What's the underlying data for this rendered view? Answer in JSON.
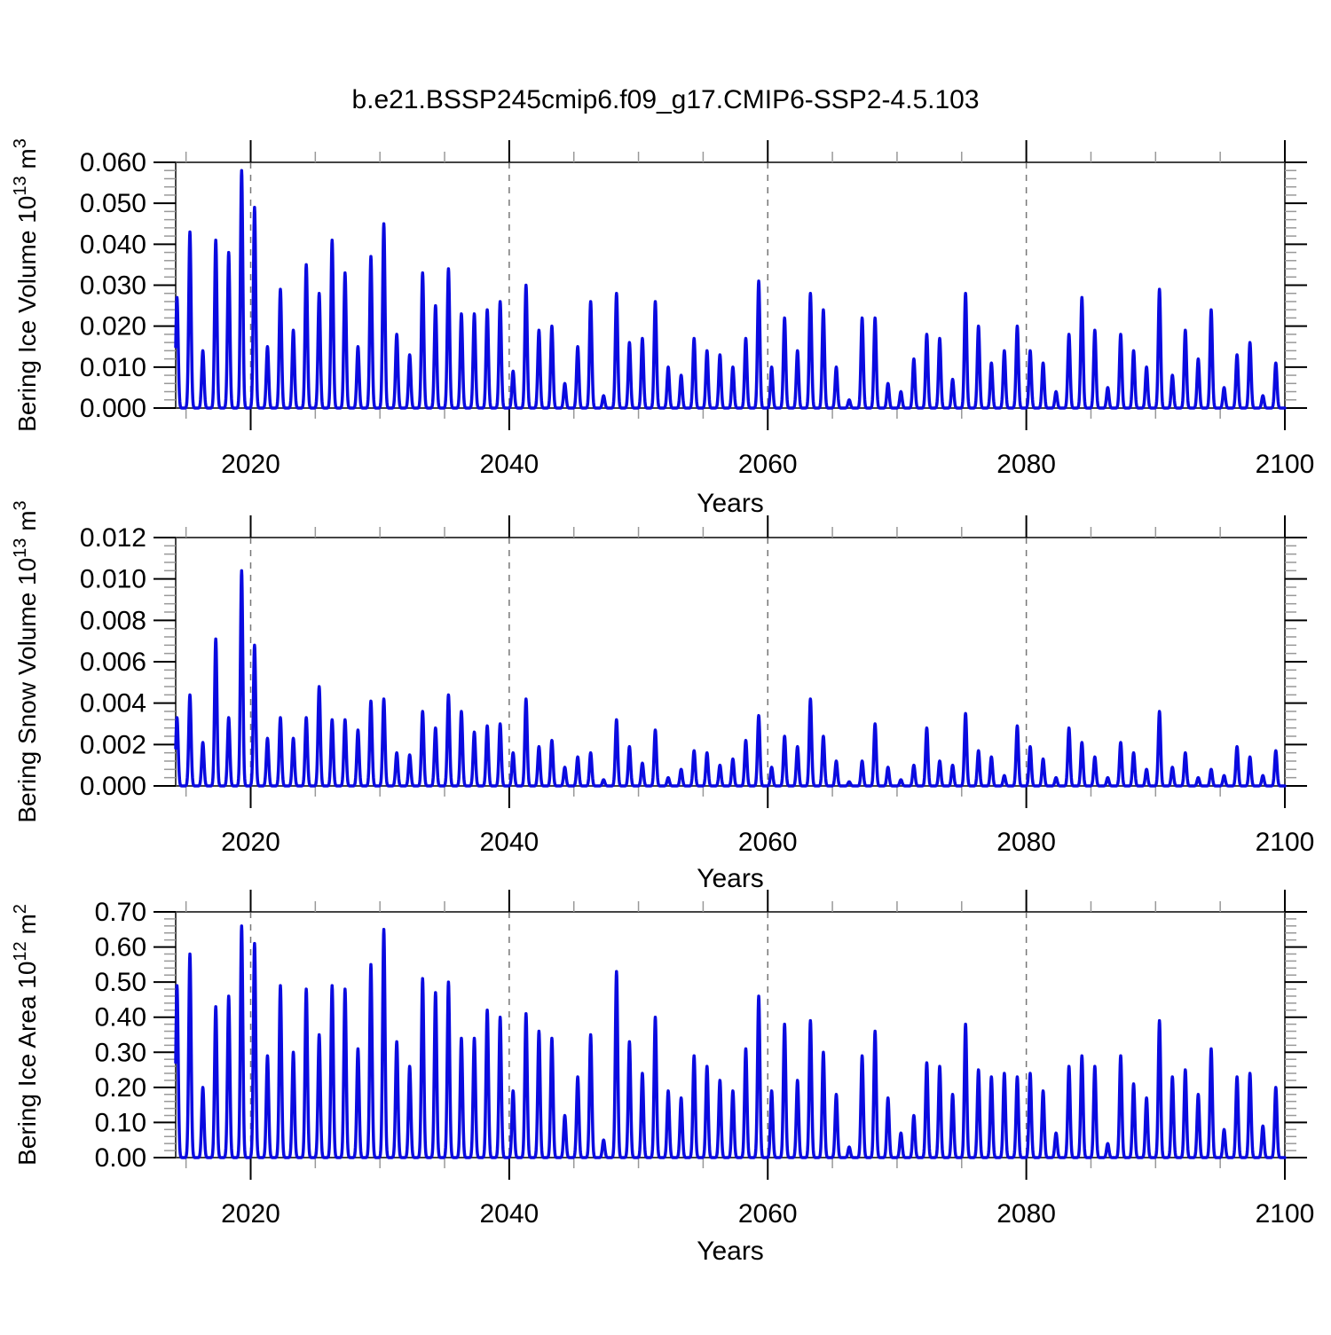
{
  "figure": {
    "title": "b.e21.BSSP245cmip6.f09_g17.CMIP6-SSP2-4.5.103",
    "background_color": "#ffffff",
    "line_color": "#0a0ae0",
    "gridline_color": "#777777",
    "gridline_style": "dashed-vertical"
  },
  "chart_data": [
    {
      "type": "line",
      "series_name": "Bering Ice Volume",
      "ylabel": "Bering Ice Volume 10^13 m^3",
      "ylabel_parts": [
        {
          "t": "Bering Ice Volume 10"
        },
        {
          "t": "13",
          "sup": true
        },
        {
          "t": " m"
        },
        {
          "t": "3",
          "sup": true
        }
      ],
      "xlabel": "Years",
      "ylim": [
        0,
        0.06
      ],
      "ytick_labels": [
        "0.000",
        "0.010",
        "0.020",
        "0.030",
        "0.040",
        "0.050",
        "0.060"
      ],
      "ytick_values": [
        0,
        0.01,
        0.02,
        0.03,
        0.04,
        0.05,
        0.06
      ],
      "y_minor_step": 0.002,
      "xlim": [
        2014.2,
        2100
      ],
      "xtick_values": [
        2020,
        2040,
        2060,
        2080,
        2100
      ],
      "x_minor_step": 5,
      "gridlines_x": [
        2020,
        2040,
        2060,
        2080
      ],
      "baseline_value": 0,
      "years": [
        2014,
        2015,
        2016,
        2017,
        2018,
        2019,
        2020,
        2021,
        2022,
        2023,
        2024,
        2025,
        2026,
        2027,
        2028,
        2029,
        2030,
        2031,
        2032,
        2033,
        2034,
        2035,
        2036,
        2037,
        2038,
        2039,
        2040,
        2041,
        2042,
        2043,
        2044,
        2045,
        2046,
        2047,
        2048,
        2049,
        2050,
        2051,
        2052,
        2053,
        2054,
        2055,
        2056,
        2057,
        2058,
        2059,
        2060,
        2061,
        2062,
        2063,
        2064,
        2065,
        2066,
        2067,
        2068,
        2069,
        2070,
        2071,
        2072,
        2073,
        2074,
        2075,
        2076,
        2077,
        2078,
        2079,
        2080,
        2081,
        2082,
        2083,
        2084,
        2085,
        2086,
        2087,
        2088,
        2089,
        2090,
        2091,
        2092,
        2093,
        2094,
        2095,
        2096,
        2097,
        2098,
        2099
      ],
      "annual_peak_values": [
        0.027,
        0.043,
        0.014,
        0.041,
        0.038,
        0.058,
        0.049,
        0.015,
        0.029,
        0.019,
        0.035,
        0.028,
        0.041,
        0.033,
        0.015,
        0.037,
        0.045,
        0.018,
        0.013,
        0.033,
        0.025,
        0.034,
        0.023,
        0.023,
        0.024,
        0.026,
        0.009,
        0.03,
        0.019,
        0.02,
        0.006,
        0.015,
        0.026,
        0.003,
        0.028,
        0.016,
        0.017,
        0.026,
        0.01,
        0.008,
        0.017,
        0.014,
        0.013,
        0.01,
        0.017,
        0.031,
        0.01,
        0.022,
        0.014,
        0.028,
        0.024,
        0.01,
        0.002,
        0.022,
        0.022,
        0.006,
        0.004,
        0.012,
        0.018,
        0.017,
        0.007,
        0.028,
        0.02,
        0.011,
        0.014,
        0.02,
        0.014,
        0.011,
        0.004,
        0.018,
        0.027,
        0.019,
        0.005,
        0.018,
        0.014,
        0.01,
        0.029,
        0.008,
        0.019,
        0.012,
        0.024,
        0.005,
        0.013,
        0.016,
        0.003,
        0.011
      ]
    },
    {
      "type": "line",
      "series_name": "Bering Snow Volume",
      "ylabel": "Bering Snow Volume 10^13 m^3",
      "ylabel_parts": [
        {
          "t": "Bering Snow Volume 10"
        },
        {
          "t": "13",
          "sup": true
        },
        {
          "t": " m"
        },
        {
          "t": "3",
          "sup": true
        }
      ],
      "xlabel": "Years",
      "ylim": [
        0,
        0.012
      ],
      "ytick_labels": [
        "0.000",
        "0.002",
        "0.004",
        "0.006",
        "0.008",
        "0.010",
        "0.012"
      ],
      "ytick_values": [
        0,
        0.002,
        0.004,
        0.006,
        0.008,
        0.01,
        0.012
      ],
      "y_minor_step": 0.0004,
      "xlim": [
        2014.2,
        2100
      ],
      "xtick_values": [
        2020,
        2040,
        2060,
        2080,
        2100
      ],
      "x_minor_step": 5,
      "gridlines_x": [
        2020,
        2040,
        2060,
        2080
      ],
      "baseline_value": 0,
      "years": [
        2014,
        2015,
        2016,
        2017,
        2018,
        2019,
        2020,
        2021,
        2022,
        2023,
        2024,
        2025,
        2026,
        2027,
        2028,
        2029,
        2030,
        2031,
        2032,
        2033,
        2034,
        2035,
        2036,
        2037,
        2038,
        2039,
        2040,
        2041,
        2042,
        2043,
        2044,
        2045,
        2046,
        2047,
        2048,
        2049,
        2050,
        2051,
        2052,
        2053,
        2054,
        2055,
        2056,
        2057,
        2058,
        2059,
        2060,
        2061,
        2062,
        2063,
        2064,
        2065,
        2066,
        2067,
        2068,
        2069,
        2070,
        2071,
        2072,
        2073,
        2074,
        2075,
        2076,
        2077,
        2078,
        2079,
        2080,
        2081,
        2082,
        2083,
        2084,
        2085,
        2086,
        2087,
        2088,
        2089,
        2090,
        2091,
        2092,
        2093,
        2094,
        2095,
        2096,
        2097,
        2098,
        2099
      ],
      "annual_peak_values": [
        0.0033,
        0.0044,
        0.0021,
        0.0071,
        0.0033,
        0.0104,
        0.0068,
        0.0023,
        0.0033,
        0.0023,
        0.0033,
        0.0048,
        0.0032,
        0.0032,
        0.0027,
        0.0041,
        0.0042,
        0.0016,
        0.0015,
        0.0036,
        0.0028,
        0.0044,
        0.0036,
        0.0026,
        0.0029,
        0.003,
        0.0016,
        0.0042,
        0.0019,
        0.0022,
        0.0009,
        0.0014,
        0.0016,
        0.0003,
        0.0032,
        0.0019,
        0.0011,
        0.0027,
        0.0004,
        0.0008,
        0.0017,
        0.0016,
        0.001,
        0.0013,
        0.0022,
        0.0034,
        0.0009,
        0.0024,
        0.0019,
        0.0042,
        0.0024,
        0.0012,
        0.0002,
        0.0012,
        0.003,
        0.0009,
        0.0003,
        0.001,
        0.0028,
        0.0012,
        0.001,
        0.0035,
        0.0017,
        0.0014,
        0.0005,
        0.0029,
        0.0019,
        0.0013,
        0.0004,
        0.0028,
        0.0021,
        0.0014,
        0.0004,
        0.0021,
        0.0016,
        0.0008,
        0.0036,
        0.0009,
        0.0016,
        0.0004,
        0.0008,
        0.0005,
        0.0019,
        0.0014,
        0.0005,
        0.0017
      ]
    },
    {
      "type": "line",
      "series_name": "Bering Ice Area",
      "ylabel": "Bering Ice Area 10^12 m^2",
      "ylabel_parts": [
        {
          "t": "Bering Ice Area 10"
        },
        {
          "t": "12",
          "sup": true
        },
        {
          "t": " m"
        },
        {
          "t": "2",
          "sup": true
        }
      ],
      "xlabel": "Years",
      "ylim": [
        0,
        0.7
      ],
      "ytick_labels": [
        "0.00",
        "0.10",
        "0.20",
        "0.30",
        "0.40",
        "0.50",
        "0.60",
        "0.70"
      ],
      "ytick_values": [
        0,
        0.1,
        0.2,
        0.3,
        0.4,
        0.5,
        0.6,
        0.7
      ],
      "y_minor_step": 0.02,
      "xlim": [
        2014.2,
        2100
      ],
      "xtick_values": [
        2020,
        2040,
        2060,
        2080,
        2100
      ],
      "x_minor_step": 5,
      "gridlines_x": [
        2020,
        2040,
        2060,
        2080
      ],
      "baseline_value": 0,
      "years": [
        2014,
        2015,
        2016,
        2017,
        2018,
        2019,
        2020,
        2021,
        2022,
        2023,
        2024,
        2025,
        2026,
        2027,
        2028,
        2029,
        2030,
        2031,
        2032,
        2033,
        2034,
        2035,
        2036,
        2037,
        2038,
        2039,
        2040,
        2041,
        2042,
        2043,
        2044,
        2045,
        2046,
        2047,
        2048,
        2049,
        2050,
        2051,
        2052,
        2053,
        2054,
        2055,
        2056,
        2057,
        2058,
        2059,
        2060,
        2061,
        2062,
        2063,
        2064,
        2065,
        2066,
        2067,
        2068,
        2069,
        2070,
        2071,
        2072,
        2073,
        2074,
        2075,
        2076,
        2077,
        2078,
        2079,
        2080,
        2081,
        2082,
        2083,
        2084,
        2085,
        2086,
        2087,
        2088,
        2089,
        2090,
        2091,
        2092,
        2093,
        2094,
        2095,
        2096,
        2097,
        2098,
        2099
      ],
      "annual_peak_values": [
        0.49,
        0.58,
        0.2,
        0.43,
        0.46,
        0.66,
        0.61,
        0.29,
        0.49,
        0.3,
        0.48,
        0.35,
        0.49,
        0.48,
        0.31,
        0.55,
        0.65,
        0.33,
        0.26,
        0.51,
        0.47,
        0.5,
        0.34,
        0.34,
        0.42,
        0.4,
        0.19,
        0.41,
        0.36,
        0.34,
        0.12,
        0.23,
        0.35,
        0.05,
        0.53,
        0.33,
        0.24,
        0.4,
        0.19,
        0.17,
        0.29,
        0.26,
        0.22,
        0.19,
        0.31,
        0.46,
        0.19,
        0.38,
        0.22,
        0.39,
        0.3,
        0.18,
        0.03,
        0.29,
        0.36,
        0.17,
        0.07,
        0.12,
        0.27,
        0.26,
        0.18,
        0.38,
        0.25,
        0.23,
        0.24,
        0.23,
        0.24,
        0.19,
        0.07,
        0.26,
        0.29,
        0.26,
        0.04,
        0.29,
        0.21,
        0.17,
        0.39,
        0.23,
        0.25,
        0.18,
        0.31,
        0.08,
        0.23,
        0.24,
        0.09,
        0.2
      ]
    }
  ]
}
